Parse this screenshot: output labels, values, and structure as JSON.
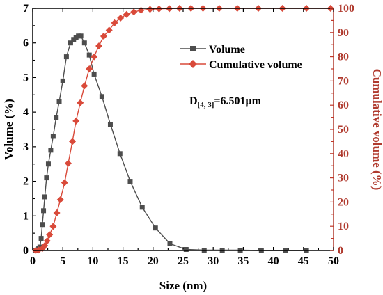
{
  "chart_data": {
    "type": "line",
    "xlabel": "Size (nm)",
    "ylabel": "Volume (%)",
    "y2label": "Cumulative volume (%)",
    "xlim": [
      0,
      50
    ],
    "ylim": [
      0,
      7
    ],
    "y2lim": [
      0,
      100
    ],
    "x_ticks": [
      "0",
      "5",
      "10",
      "15",
      "20",
      "25",
      "30",
      "35",
      "40",
      "45",
      "50"
    ],
    "y_ticks": [
      "0",
      "1",
      "2",
      "3",
      "4",
      "5",
      "6",
      "7"
    ],
    "y2_ticks": [
      "0",
      "10",
      "20",
      "30",
      "40",
      "50",
      "60",
      "70",
      "80",
      "90",
      "100"
    ],
    "legend_position": "upper-right",
    "annotation": {
      "prefix": "D",
      "subscript": "[4, 3]",
      "suffix": "=6.501μm"
    },
    "colors": {
      "volume": "#4d4d4d",
      "cumulative": "#d94a3a",
      "right_axis": "#b03a2e"
    },
    "series": [
      {
        "name": "Volume",
        "axis": "left",
        "marker": "square",
        "x": [
          0.4,
          0.6,
          0.8,
          1.0,
          1.2,
          1.4,
          1.6,
          1.8,
          2.0,
          2.3,
          2.6,
          3.0,
          3.4,
          3.9,
          4.4,
          5.0,
          5.6,
          6.3,
          6.8,
          7.2,
          7.6,
          8.0,
          8.6,
          9.4,
          10.2,
          11.5,
          12.9,
          14.5,
          16.2,
          18.2,
          20.4,
          22.8,
          25.5,
          28.5,
          31.5,
          34.5,
          38.0,
          42.0,
          45.5
        ],
        "y": [
          0.0,
          0.01,
          0.02,
          0.05,
          0.1,
          0.35,
          0.75,
          1.15,
          1.55,
          2.1,
          2.5,
          2.9,
          3.3,
          3.85,
          4.3,
          4.9,
          5.6,
          6.0,
          6.1,
          6.15,
          6.2,
          6.2,
          6.0,
          5.65,
          5.1,
          4.45,
          3.65,
          2.8,
          2.0,
          1.25,
          0.65,
          0.2,
          0.03,
          0.01,
          0.01,
          0.01,
          0.0,
          0.0,
          0.0
        ]
      },
      {
        "name": "Cumulative volume",
        "axis": "right",
        "marker": "diamond",
        "x": [
          0.5,
          1.0,
          1.6,
          2.0,
          2.4,
          2.8,
          3.4,
          4.0,
          4.6,
          5.3,
          5.9,
          6.6,
          7.2,
          7.9,
          8.6,
          9.4,
          10.2,
          11.0,
          11.8,
          12.7,
          13.6,
          14.6,
          15.6,
          16.8,
          18.0,
          19.5,
          21.0,
          22.7,
          24.4,
          26.3,
          28.3,
          31.0,
          34.0,
          37.5,
          41.5,
          45.5,
          49.5
        ],
        "y": [
          0.0,
          0.2,
          0.8,
          2.0,
          4.0,
          6.5,
          10.0,
          15.5,
          21.0,
          28.0,
          36.0,
          45.0,
          53.5,
          61.0,
          68.0,
          75.0,
          80.0,
          84.5,
          88.5,
          91.0,
          94.0,
          96.0,
          97.5,
          98.5,
          99.2,
          99.6,
          99.8,
          99.9,
          100.0,
          100.0,
          100.0,
          100.0,
          100.0,
          100.0,
          100.0,
          100.0,
          100.0
        ]
      }
    ]
  }
}
